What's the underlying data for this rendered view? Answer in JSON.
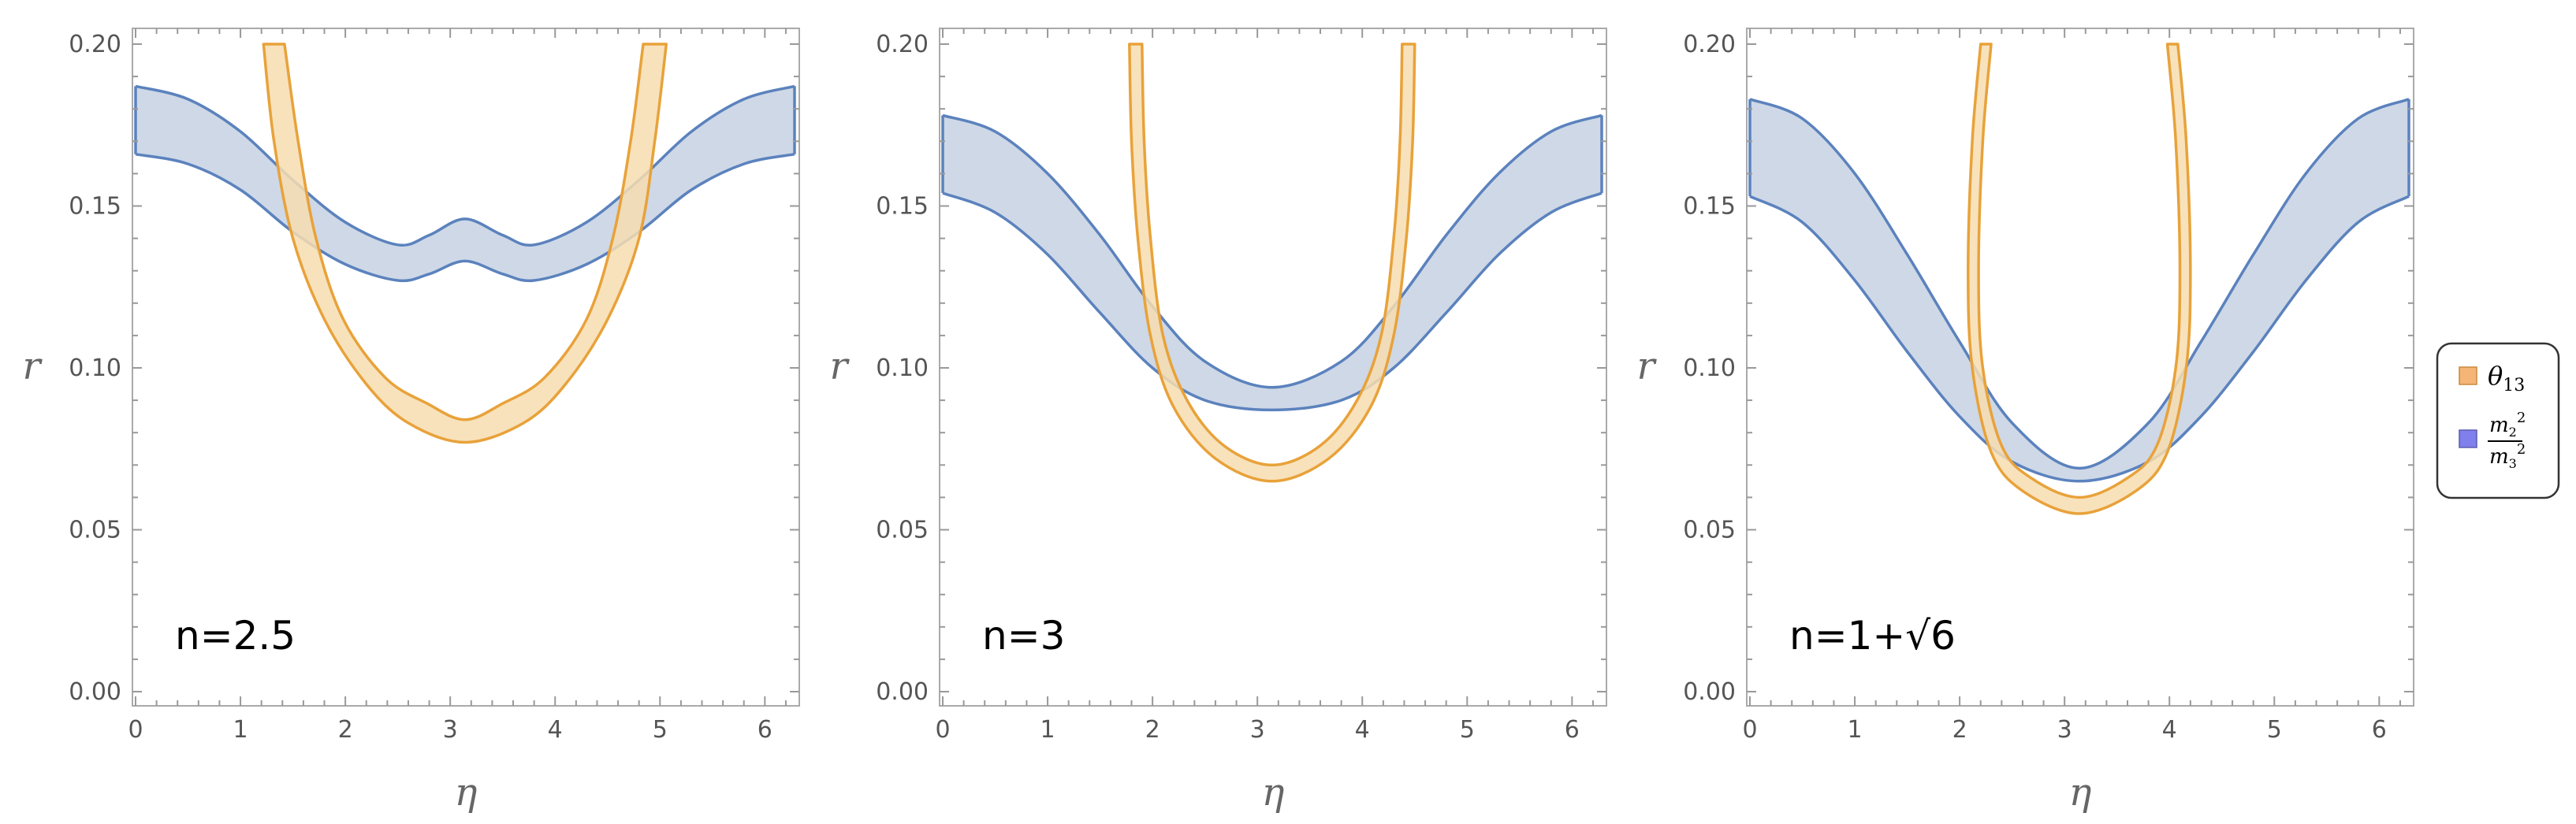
{
  "colors": {
    "theta_fill": "#f7ddb0",
    "theta_stroke": "#e8a23a",
    "mass_fill": "#cbd6e6",
    "mass_stroke": "#5b82bd",
    "legend_theta_swatch": "#f4b577",
    "legend_mass_swatch": "#8080ec"
  },
  "legend": {
    "placement": "right",
    "items": [
      {
        "key": "theta13",
        "symbol": "θ",
        "sub": "13",
        "swatch": "legend_theta_swatch"
      },
      {
        "key": "mass_ratio",
        "num_base": "m",
        "num_sub": "2",
        "num_sup": "2",
        "den_base": "m",
        "den_sub": "3",
        "den_sup": "2",
        "swatch": "legend_mass_swatch"
      }
    ]
  },
  "chart_data": [
    {
      "type": "area",
      "annotation": "n=2.5",
      "xlabel": "η",
      "ylabel": "r",
      "xlim": [
        0,
        6.283
      ],
      "ylim": [
        0,
        0.2
      ],
      "xticks": [
        "0",
        "1",
        "2",
        "3",
        "4",
        "5",
        "6"
      ],
      "yticks": [
        "0.00",
        "0.05",
        "0.10",
        "0.15",
        "0.20"
      ],
      "series": [
        {
          "key": "mass_ratio",
          "kind": "band",
          "x": [
            0,
            0.5,
            1.0,
            1.5,
            2.0,
            2.5,
            2.8,
            3.14,
            3.5,
            3.8,
            4.3,
            4.8,
            5.3,
            5.8,
            6.283
          ],
          "lower": [
            0.166,
            0.163,
            0.155,
            0.142,
            0.132,
            0.127,
            0.129,
            0.133,
            0.129,
            0.127,
            0.132,
            0.142,
            0.155,
            0.163,
            0.166
          ],
          "upper": [
            0.187,
            0.183,
            0.173,
            0.158,
            0.145,
            0.138,
            0.141,
            0.146,
            0.141,
            0.138,
            0.145,
            0.158,
            0.173,
            0.183,
            0.187
          ]
        },
        {
          "key": "theta13",
          "kind": "u-band",
          "left_outer": [
            [
              1.22,
              0.2
            ],
            [
              1.32,
              0.17
            ],
            [
              1.5,
              0.14
            ],
            [
              1.8,
              0.115
            ],
            [
              2.2,
              0.095
            ],
            [
              2.6,
              0.083
            ],
            [
              3.14,
              0.077
            ]
          ],
          "right_outer": [
            [
              3.14,
              0.077
            ],
            [
              3.7,
              0.083
            ],
            [
              4.1,
              0.095
            ],
            [
              4.5,
              0.115
            ],
            [
              4.8,
              0.14
            ],
            [
              4.95,
              0.17
            ],
            [
              5.06,
              0.2
            ]
          ],
          "right_inner": [
            [
              4.84,
              0.2
            ],
            [
              4.72,
              0.17
            ],
            [
              4.55,
              0.14
            ],
            [
              4.3,
              0.115
            ],
            [
              3.9,
              0.097
            ],
            [
              3.5,
              0.089
            ],
            [
              3.14,
              0.084
            ]
          ],
          "left_inner": [
            [
              3.14,
              0.084
            ],
            [
              2.78,
              0.089
            ],
            [
              2.38,
              0.097
            ],
            [
              1.98,
              0.115
            ],
            [
              1.72,
              0.14
            ],
            [
              1.55,
              0.17
            ],
            [
              1.42,
              0.2
            ]
          ]
        }
      ]
    },
    {
      "type": "area",
      "annotation": "n=3",
      "xlabel": "η",
      "ylabel": "r",
      "xlim": [
        0,
        6.283
      ],
      "ylim": [
        0,
        0.2
      ],
      "xticks": [
        "0",
        "1",
        "2",
        "3",
        "4",
        "5",
        "6"
      ],
      "yticks": [
        "0.00",
        "0.05",
        "0.10",
        "0.15",
        "0.20"
      ],
      "series": [
        {
          "key": "mass_ratio",
          "kind": "band",
          "x": [
            0,
            0.5,
            1.0,
            1.5,
            2.0,
            2.5,
            3.14,
            3.8,
            4.3,
            4.8,
            5.3,
            5.8,
            6.283
          ],
          "lower": [
            0.154,
            0.148,
            0.135,
            0.117,
            0.1,
            0.09,
            0.087,
            0.09,
            0.1,
            0.117,
            0.135,
            0.148,
            0.154
          ],
          "upper": [
            0.178,
            0.173,
            0.16,
            0.141,
            0.119,
            0.102,
            0.094,
            0.102,
            0.119,
            0.141,
            0.16,
            0.173,
            0.178
          ]
        },
        {
          "key": "theta13",
          "kind": "u-band",
          "left_outer": [
            [
              1.78,
              0.2
            ],
            [
              1.8,
              0.17
            ],
            [
              1.86,
              0.14
            ],
            [
              1.98,
              0.11
            ],
            [
              2.2,
              0.088
            ],
            [
              2.6,
              0.072
            ],
            [
              3.14,
              0.065
            ]
          ],
          "right_outer": [
            [
              3.14,
              0.065
            ],
            [
              3.68,
              0.072
            ],
            [
              4.08,
              0.088
            ],
            [
              4.3,
              0.11
            ],
            [
              4.42,
              0.14
            ],
            [
              4.48,
              0.17
            ],
            [
              4.5,
              0.2
            ]
          ],
          "right_inner": [
            [
              4.38,
              0.2
            ],
            [
              4.36,
              0.17
            ],
            [
              4.3,
              0.14
            ],
            [
              4.18,
              0.11
            ],
            [
              3.95,
              0.09
            ],
            [
              3.6,
              0.076
            ],
            [
              3.14,
              0.07
            ]
          ],
          "left_inner": [
            [
              3.14,
              0.07
            ],
            [
              2.68,
              0.076
            ],
            [
              2.33,
              0.09
            ],
            [
              2.1,
              0.11
            ],
            [
              1.98,
              0.14
            ],
            [
              1.92,
              0.17
            ],
            [
              1.9,
              0.2
            ]
          ]
        }
      ]
    },
    {
      "type": "area",
      "annotation": "n=1+√6",
      "xlabel": "η",
      "ylabel": "r",
      "xlim": [
        0,
        6.283
      ],
      "ylim": [
        0,
        0.2
      ],
      "xticks": [
        "0",
        "1",
        "2",
        "3",
        "4",
        "5",
        "6"
      ],
      "yticks": [
        "0.00",
        "0.05",
        "0.10",
        "0.15",
        "0.20"
      ],
      "series": [
        {
          "key": "mass_ratio",
          "kind": "band",
          "x": [
            0,
            0.5,
            1.0,
            1.5,
            2.0,
            2.5,
            3.14,
            3.8,
            4.3,
            4.8,
            5.3,
            5.8,
            6.283
          ],
          "lower": [
            0.153,
            0.145,
            0.127,
            0.105,
            0.085,
            0.071,
            0.065,
            0.071,
            0.085,
            0.105,
            0.127,
            0.145,
            0.153
          ],
          "upper": [
            0.183,
            0.177,
            0.16,
            0.135,
            0.108,
            0.083,
            0.069,
            0.083,
            0.108,
            0.135,
            0.16,
            0.177,
            0.183
          ]
        },
        {
          "key": "theta13",
          "kind": "u-band",
          "left_outer": [
            [
              2.2,
              0.2
            ],
            [
              2.12,
              0.17
            ],
            [
              2.08,
              0.13
            ],
            [
              2.12,
              0.1
            ],
            [
              2.3,
              0.074
            ],
            [
              2.6,
              0.062
            ],
            [
              3.14,
              0.055
            ]
          ],
          "right_outer": [
            [
              3.14,
              0.055
            ],
            [
              3.68,
              0.062
            ],
            [
              3.98,
              0.074
            ],
            [
              4.16,
              0.1
            ],
            [
              4.2,
              0.13
            ],
            [
              4.16,
              0.17
            ],
            [
              4.08,
              0.2
            ]
          ],
          "right_inner": [
            [
              3.98,
              0.2
            ],
            [
              4.06,
              0.17
            ],
            [
              4.1,
              0.13
            ],
            [
              4.06,
              0.1
            ],
            [
              3.88,
              0.076
            ],
            [
              3.6,
              0.066
            ],
            [
              3.14,
              0.06
            ]
          ],
          "left_inner": [
            [
              3.14,
              0.06
            ],
            [
              2.68,
              0.066
            ],
            [
              2.4,
              0.076
            ],
            [
              2.22,
              0.1
            ],
            [
              2.18,
              0.13
            ],
            [
              2.22,
              0.17
            ],
            [
              2.3,
              0.2
            ]
          ]
        }
      ]
    }
  ]
}
